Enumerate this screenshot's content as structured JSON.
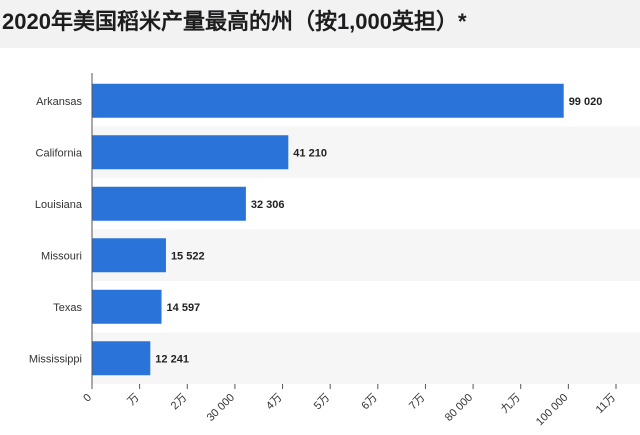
{
  "title": "2020年美国稻米产量最高的州（按1,000英担）*",
  "colors": {
    "bar": "#2a73d9",
    "stripe": "#f6f6f6",
    "background": "#ffffff",
    "axis": "#555555"
  },
  "chart_data": {
    "type": "bar",
    "orientation": "horizontal",
    "title": "2020年美国稻米产量最高的州（按1,000英担）*",
    "categories": [
      "Arkansas",
      "California",
      "Louisiana",
      "Missouri",
      "Texas",
      "Mississippi"
    ],
    "values": [
      99020,
      41210,
      32306,
      15522,
      14597,
      12241
    ],
    "value_labels": [
      "99 020",
      "41 210",
      "32 306",
      "15 522",
      "14 597",
      "12 241"
    ],
    "xlim": [
      0,
      110000
    ],
    "x_ticks": [
      0,
      10000,
      20000,
      30000,
      40000,
      50000,
      60000,
      70000,
      80000,
      90000,
      100000,
      110000
    ],
    "x_tick_labels": [
      "0",
      "万",
      "2万",
      "30 000",
      "4万",
      "5万",
      "6万",
      "7万",
      "80 000",
      "九万",
      "100 000",
      "11万"
    ],
    "grid": false,
    "legend": "none"
  }
}
